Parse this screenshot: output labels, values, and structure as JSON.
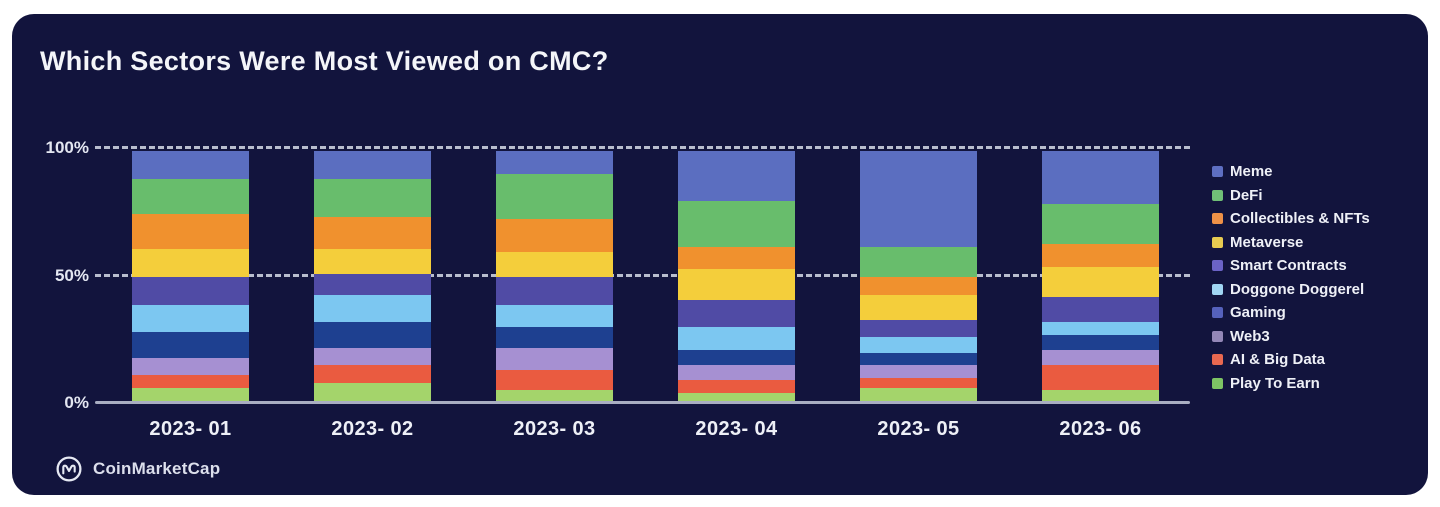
{
  "page": {
    "card_background": "#12143d",
    "outer_background": "#ffffff"
  },
  "header": {
    "title": "Which Sectors Were Most Viewed on CMC?"
  },
  "footer": {
    "brand": "CoinMarketCap",
    "logo_icon": "coinmarketcap-logo"
  },
  "chart_data": {
    "type": "bar",
    "stacked": true,
    "unit": "percent",
    "title": "Which Sectors Were Most Viewed on CMC?",
    "xlabel": "",
    "ylabel": "",
    "ylim": [
      0,
      100
    ],
    "grid": "dashed horizontal at 50% and 100%, solid baseline at 0%",
    "legend_position": "right",
    "stack_order": "first series listed is at the top of each bar",
    "categories": [
      "2023- 01",
      "2023- 02",
      "2023- 03",
      "2023- 04",
      "2023- 05",
      "2023- 06"
    ],
    "y_ticks": [
      {
        "label": "100%",
        "value": 100,
        "style": "dashed"
      },
      {
        "label": "50%",
        "value": 50,
        "style": "dashed"
      },
      {
        "label": "0%",
        "value": 0,
        "style": "solid"
      }
    ],
    "series": [
      {
        "name": "Meme",
        "color": "#5b6ec0",
        "legend_color": "#5e6fc2",
        "values": [
          11,
          11,
          9,
          20,
          38,
          21
        ]
      },
      {
        "name": "DeFi",
        "color": "#68bd6c",
        "legend_color": "#70c077",
        "values": [
          14,
          15,
          18,
          18,
          12,
          16
        ]
      },
      {
        "name": "Collectibles & NFTs",
        "color": "#f0912e",
        "legend_color": "#ee9147",
        "values": [
          14,
          13,
          13,
          9,
          7,
          9
        ]
      },
      {
        "name": "Metaverse",
        "color": "#f4ce3b",
        "legend_color": "#e7cb51",
        "values": [
          11,
          10,
          10,
          12,
          10,
          12
        ]
      },
      {
        "name": "Smart Contracts",
        "color": "#504ba5",
        "legend_color": "#6b63c6",
        "values": [
          11,
          8,
          11,
          11,
          7,
          10
        ]
      },
      {
        "name": "Doggone Doggerel",
        "color": "#7cc7f1",
        "legend_color": "#a1d6f3",
        "values": [
          11,
          11,
          9,
          9,
          6,
          5
        ]
      },
      {
        "name": "Gaming",
        "color": "#1e4090",
        "legend_color": "#5561bb",
        "values": [
          10,
          10,
          8,
          6,
          5,
          6
        ]
      },
      {
        "name": "Web3",
        "color": "#a690d2",
        "legend_color": "#9387b7",
        "values": [
          7,
          7,
          9,
          6,
          5,
          6
        ]
      },
      {
        "name": "AI & Big Data",
        "color": "#ea5b40",
        "legend_color": "#e86850",
        "values": [
          5,
          7,
          8,
          5,
          4,
          10
        ]
      },
      {
        "name": "Play To Earn",
        "color": "#a4d46b",
        "legend_color": "#7dc464",
        "values": [
          6,
          8,
          5,
          4,
          6,
          5
        ]
      }
    ]
  }
}
